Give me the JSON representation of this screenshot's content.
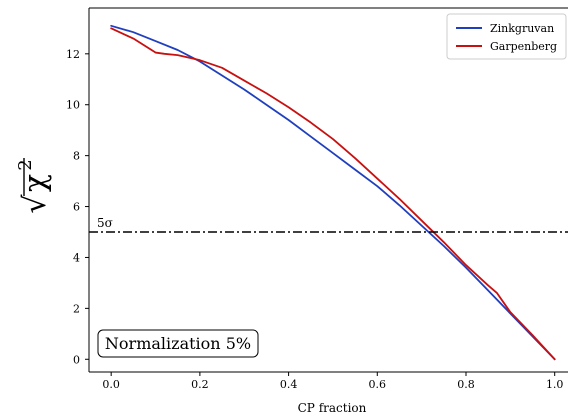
{
  "chart_data": {
    "type": "line",
    "title": "",
    "xlabel": "CP fraction",
    "ylabel": {
      "radical": "√",
      "base": "χ",
      "exponent": "2"
    },
    "xlim": [
      -0.05,
      1.03
    ],
    "ylim": [
      -0.5,
      13.8
    ],
    "xticks": [
      0.0,
      0.2,
      0.4,
      0.6,
      0.8,
      1.0
    ],
    "xtick_labels": [
      "0.0",
      "0.2",
      "0.4",
      "0.6",
      "0.8",
      "1.0"
    ],
    "yticks": [
      0,
      2,
      4,
      6,
      8,
      10,
      12
    ],
    "ytick_labels": [
      "0",
      "2",
      "4",
      "6",
      "8",
      "10",
      "12"
    ],
    "grid": false,
    "legend_position": "top-right",
    "series": [
      {
        "name": "Zinkgruvan",
        "color": "#1f3fbf",
        "x": [
          0.0,
          0.05,
          0.1,
          0.15,
          0.2,
          0.25,
          0.3,
          0.35,
          0.4,
          0.45,
          0.5,
          0.55,
          0.6,
          0.65,
          0.7,
          0.75,
          0.8,
          0.85,
          0.9,
          0.95,
          1.0
        ],
        "y": [
          13.1,
          12.85,
          12.5,
          12.15,
          11.7,
          11.15,
          10.6,
          10.0,
          9.4,
          8.75,
          8.1,
          7.45,
          6.8,
          6.05,
          5.25,
          4.45,
          3.6,
          2.7,
          1.8,
          0.9,
          0.0
        ]
      },
      {
        "name": "Garpenberg",
        "color": "#c81010",
        "x": [
          0.0,
          0.05,
          0.1,
          0.12,
          0.15,
          0.2,
          0.25,
          0.3,
          0.35,
          0.4,
          0.45,
          0.5,
          0.55,
          0.6,
          0.65,
          0.7,
          0.75,
          0.8,
          0.85,
          0.87,
          0.9,
          0.95,
          1.0
        ],
        "y": [
          13.0,
          12.6,
          12.05,
          12.0,
          11.95,
          11.75,
          11.45,
          10.95,
          10.45,
          9.9,
          9.3,
          8.65,
          7.9,
          7.1,
          6.3,
          5.45,
          4.6,
          3.7,
          2.9,
          2.6,
          1.85,
          0.95,
          0.0
        ]
      }
    ],
    "reference_lines": [
      {
        "value": 5,
        "orientation": "horizontal",
        "style": "dash-dot",
        "color": "#000000",
        "label": "5σ"
      }
    ],
    "annotation_box": {
      "text": "Normalization 5%"
    }
  }
}
